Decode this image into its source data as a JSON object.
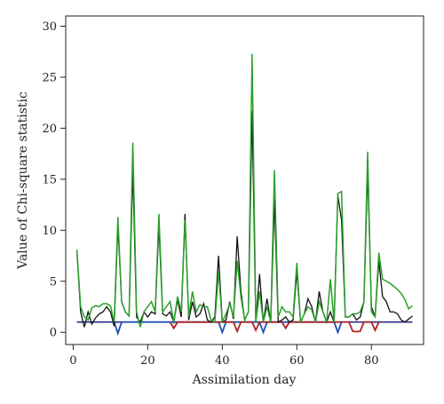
{
  "chart_data": {
    "type": "line",
    "title": "",
    "xlabel": "Assimilation day",
    "ylabel": "Value of Chi-square statistic",
    "xlim": [
      -2,
      94
    ],
    "ylim": [
      -1.2,
      31
    ],
    "xticks": [
      0,
      20,
      40,
      60,
      80
    ],
    "yticks": [
      0,
      5,
      10,
      15,
      20,
      25,
      30
    ],
    "grid": false,
    "legend": "none",
    "series": [
      {
        "color": "#2a2a88",
        "width": 1.6,
        "x": [
          1,
          91
        ],
        "y": [
          1.0,
          1.0
        ]
      },
      {
        "color": "#1a4fb5",
        "width": 1.8,
        "x": [
          11,
          12,
          13,
          39,
          40,
          41,
          50,
          51,
          52,
          70,
          71,
          72
        ],
        "y": [
          1.0,
          -0.1,
          1.0,
          1.0,
          0.0,
          1.0,
          1.0,
          0.0,
          1.0,
          1.0,
          0.0,
          1.0
        ]
      },
      {
        "color": "#b02020",
        "width": 1.8,
        "x": [
          26,
          27,
          28,
          43,
          44,
          45,
          48,
          49,
          50,
          56,
          57,
          58,
          74,
          75,
          76,
          77,
          78,
          80,
          81,
          82
        ],
        "y": [
          1.0,
          0.4,
          1.0,
          1.0,
          0.1,
          1.0,
          1.0,
          0.2,
          1.0,
          1.0,
          0.4,
          1.0,
          1.0,
          0.1,
          0.05,
          0.1,
          1.0,
          1.0,
          0.2,
          1.0
        ]
      },
      {
        "color": "#111111",
        "width": 1.3,
        "x": [
          1,
          2,
          3,
          4,
          5,
          6,
          7,
          8,
          9,
          10,
          11,
          12,
          13,
          14,
          15,
          16,
          17,
          18,
          19,
          20,
          21,
          22,
          23,
          24,
          25,
          26,
          27,
          28,
          29,
          30,
          31,
          32,
          33,
          34,
          35,
          36,
          37,
          38,
          39,
          40,
          41,
          42,
          43,
          44,
          45,
          46,
          47,
          48,
          49,
          50,
          51,
          52,
          53,
          54,
          55,
          56,
          57,
          58,
          59,
          60,
          61,
          62,
          63,
          64,
          65,
          66,
          67,
          68,
          69,
          70,
          71,
          72,
          73,
          74,
          75,
          76,
          77,
          78,
          79,
          80,
          81,
          82,
          83,
          84,
          85,
          86,
          87,
          88,
          89,
          90,
          91
        ],
        "y": [
          8.0,
          2.0,
          0.5,
          2.0,
          0.8,
          1.4,
          1.8,
          2.0,
          2.5,
          2.0,
          0.6,
          10.5,
          3.0,
          2.0,
          1.6,
          16.0,
          1.5,
          1.0,
          2.0,
          1.5,
          2.0,
          1.8,
          10.5,
          1.8,
          1.6,
          2.0,
          1.0,
          3.2,
          1.5,
          11.6,
          1.2,
          3.0,
          1.5,
          1.8,
          2.8,
          1.2,
          1.0,
          1.5,
          7.5,
          1.0,
          1.2,
          3.0,
          1.3,
          9.4,
          4.0,
          1.2,
          2.0,
          21.7,
          1.0,
          5.7,
          1.0,
          3.3,
          1.0,
          13.0,
          1.0,
          1.2,
          1.5,
          1.0,
          1.2,
          6.0,
          1.0,
          1.8,
          3.3,
          2.5,
          1.0,
          4.0,
          2.0,
          1.0,
          2.0,
          1.0,
          13.4,
          11.0,
          1.5,
          1.5,
          1.8,
          1.2,
          1.5,
          3.0,
          16.0,
          2.5,
          1.5,
          7.0,
          3.5,
          3.0,
          2.0,
          2.0,
          1.8,
          1.2,
          1.0,
          1.3,
          1.6
        ]
      },
      {
        "color": "#2aa02a",
        "width": 1.5,
        "x": [
          1,
          2,
          3,
          4,
          5,
          6,
          7,
          8,
          9,
          10,
          11,
          12,
          13,
          14,
          15,
          16,
          17,
          18,
          19,
          20,
          21,
          22,
          23,
          24,
          25,
          26,
          27,
          28,
          29,
          30,
          31,
          32,
          33,
          34,
          35,
          36,
          37,
          38,
          39,
          40,
          41,
          42,
          43,
          44,
          45,
          46,
          47,
          48,
          49,
          50,
          51,
          52,
          53,
          54,
          55,
          56,
          57,
          58,
          59,
          60,
          61,
          62,
          63,
          64,
          65,
          66,
          67,
          68,
          69,
          70,
          71,
          72,
          73,
          74,
          75,
          76,
          77,
          78,
          79,
          80,
          81,
          82,
          83,
          84,
          85,
          86,
          87,
          88,
          89,
          90,
          91
        ],
        "y": [
          8.1,
          2.5,
          1.5,
          1.2,
          2.4,
          2.6,
          2.5,
          2.8,
          2.8,
          2.6,
          1.0,
          11.3,
          3.0,
          2.0,
          1.6,
          18.6,
          2.0,
          0.5,
          2.0,
          2.5,
          3.0,
          2.0,
          11.6,
          2.0,
          2.5,
          3.0,
          1.0,
          3.5,
          2.0,
          11.0,
          1.5,
          4.0,
          2.0,
          2.7,
          2.5,
          2.5,
          1.2,
          1.0,
          6.0,
          1.0,
          1.8,
          2.8,
          1.5,
          7.0,
          3.5,
          1.2,
          2.0,
          27.3,
          1.0,
          4.0,
          1.0,
          2.5,
          1.0,
          15.9,
          1.5,
          2.5,
          2.0,
          2.0,
          1.5,
          6.8,
          1.0,
          1.8,
          2.5,
          2.2,
          1.0,
          3.0,
          2.0,
          1.0,
          5.2,
          1.0,
          13.6,
          13.8,
          1.5,
          1.5,
          1.8,
          1.8,
          2.0,
          3.0,
          17.7,
          2.0,
          1.5,
          7.8,
          5.2,
          5.0,
          4.8,
          4.5,
          4.2,
          3.8,
          3.2,
          2.3,
          2.6
        ]
      }
    ]
  }
}
